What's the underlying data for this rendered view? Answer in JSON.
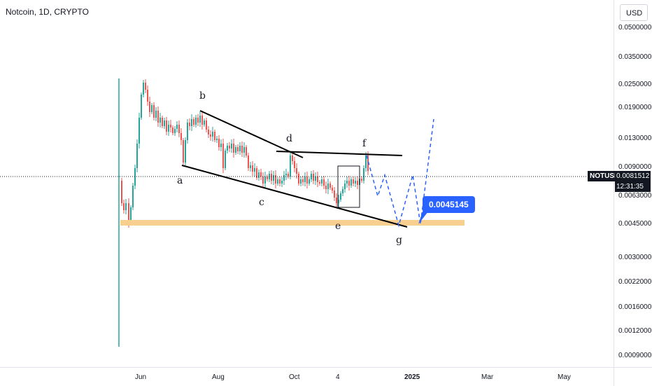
{
  "header": {
    "symbol_title": "Notcoin, 1D, CRYPTO"
  },
  "price_axis": {
    "currency": "USD",
    "ticks": [
      "0.0500000",
      "0.0350000",
      "0.0250000",
      "0.0190000",
      "0.0130000",
      "0.0090000",
      "0.0063000",
      "0.0045000",
      "0.0030000",
      "0.0022000",
      "0.0016000",
      "0.0012000",
      "0.0009000"
    ]
  },
  "time_axis": {
    "labels": [
      {
        "text": "Jun",
        "bold": false
      },
      {
        "text": "Aug",
        "bold": false
      },
      {
        "text": "Oct",
        "bold": false
      },
      {
        "text": "4",
        "bold": false
      },
      {
        "text": "2025",
        "bold": true
      },
      {
        "text": "Mar",
        "bold": false
      },
      {
        "text": "May",
        "bold": false
      }
    ]
  },
  "last_price": {
    "symbol": "NOTUSD",
    "price": "0.0081512",
    "countdown": "12:31:35"
  },
  "annotations": {
    "wave_labels": [
      "a",
      "b",
      "c",
      "d",
      "e",
      "f",
      "g"
    ],
    "target_callout": "0.0045145"
  },
  "colors": {
    "up_candle": "#26a69a",
    "down_candle": "#ef5350",
    "support_zone": "#f9cf8f",
    "projection": "#2962ff",
    "trendline": "#000000"
  }
}
